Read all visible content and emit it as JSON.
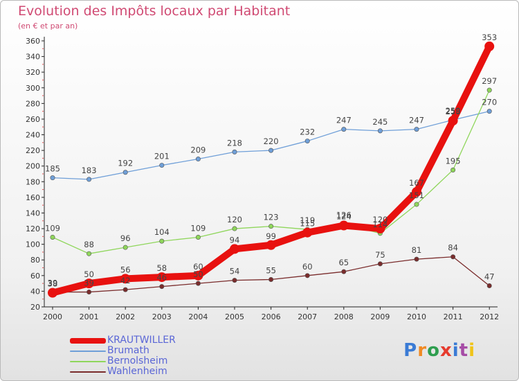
{
  "header": {
    "title": "Evolution des Impôts locaux par Habitant",
    "subtitle": "(en € et par an)"
  },
  "branding": {
    "logo_text": "Proxiti",
    "letter_colors": [
      "#3a7bd5",
      "#f08a24",
      "#2e9e4f",
      "#e63b2e",
      "#3a7bd5",
      "#a64ca6",
      "#f0c419"
    ]
  },
  "chart_data": {
    "type": "line",
    "x": [
      "2000",
      "2001",
      "2002",
      "2003",
      "2004",
      "2005",
      "2006",
      "2007",
      "2008",
      "2009",
      "2010",
      "2011",
      "2012"
    ],
    "ylim": [
      20,
      360
    ],
    "yticks": [
      20,
      40,
      60,
      80,
      100,
      120,
      140,
      160,
      180,
      200,
      220,
      240,
      260,
      280,
      300,
      320,
      340,
      360
    ],
    "grid": false,
    "legend_position": "bottom-left",
    "series": [
      {
        "name": "KRAUTWILLER",
        "color": "#e8110f",
        "values": [
          38,
          50,
          56,
          58,
          60,
          94,
          99,
          115,
          124,
          120,
          167,
          258,
          353
        ],
        "labels": [
          "38",
          "50",
          "56",
          "58",
          "60",
          "94",
          "99",
          "115",
          "124",
          "120",
          "167",
          "258",
          "353"
        ]
      },
      {
        "name": "Brumath",
        "color": "#6f9fd8",
        "values": [
          185,
          183,
          192,
          201,
          209,
          218,
          220,
          232,
          247,
          245,
          247,
          259,
          270
        ],
        "labels": [
          "185",
          "183",
          "192",
          "201",
          "209",
          "218",
          "220",
          "232",
          "247",
          "245",
          "247",
          "259",
          "270"
        ]
      },
      {
        "name": "Bernolsheim",
        "color": "#8fd65b",
        "values": [
          109,
          88,
          96,
          104,
          109,
          120,
          123,
          119,
          126,
          114,
          151,
          195,
          297
        ],
        "labels": [
          "109",
          "88",
          "96",
          "104",
          "109",
          "120",
          "123",
          "119",
          "126",
          "114",
          "151",
          "195",
          "297"
        ]
      },
      {
        "name": "Wahlenheim",
        "color": "#7a2c2c",
        "values": [
          39,
          39,
          42,
          46,
          50,
          54,
          55,
          60,
          65,
          75,
          81,
          84,
          47
        ],
        "labels": [
          "39",
          "39",
          "42",
          "46",
          "50",
          "54",
          "55",
          "60",
          "65",
          "75",
          "81",
          "84",
          "47"
        ]
      }
    ]
  }
}
